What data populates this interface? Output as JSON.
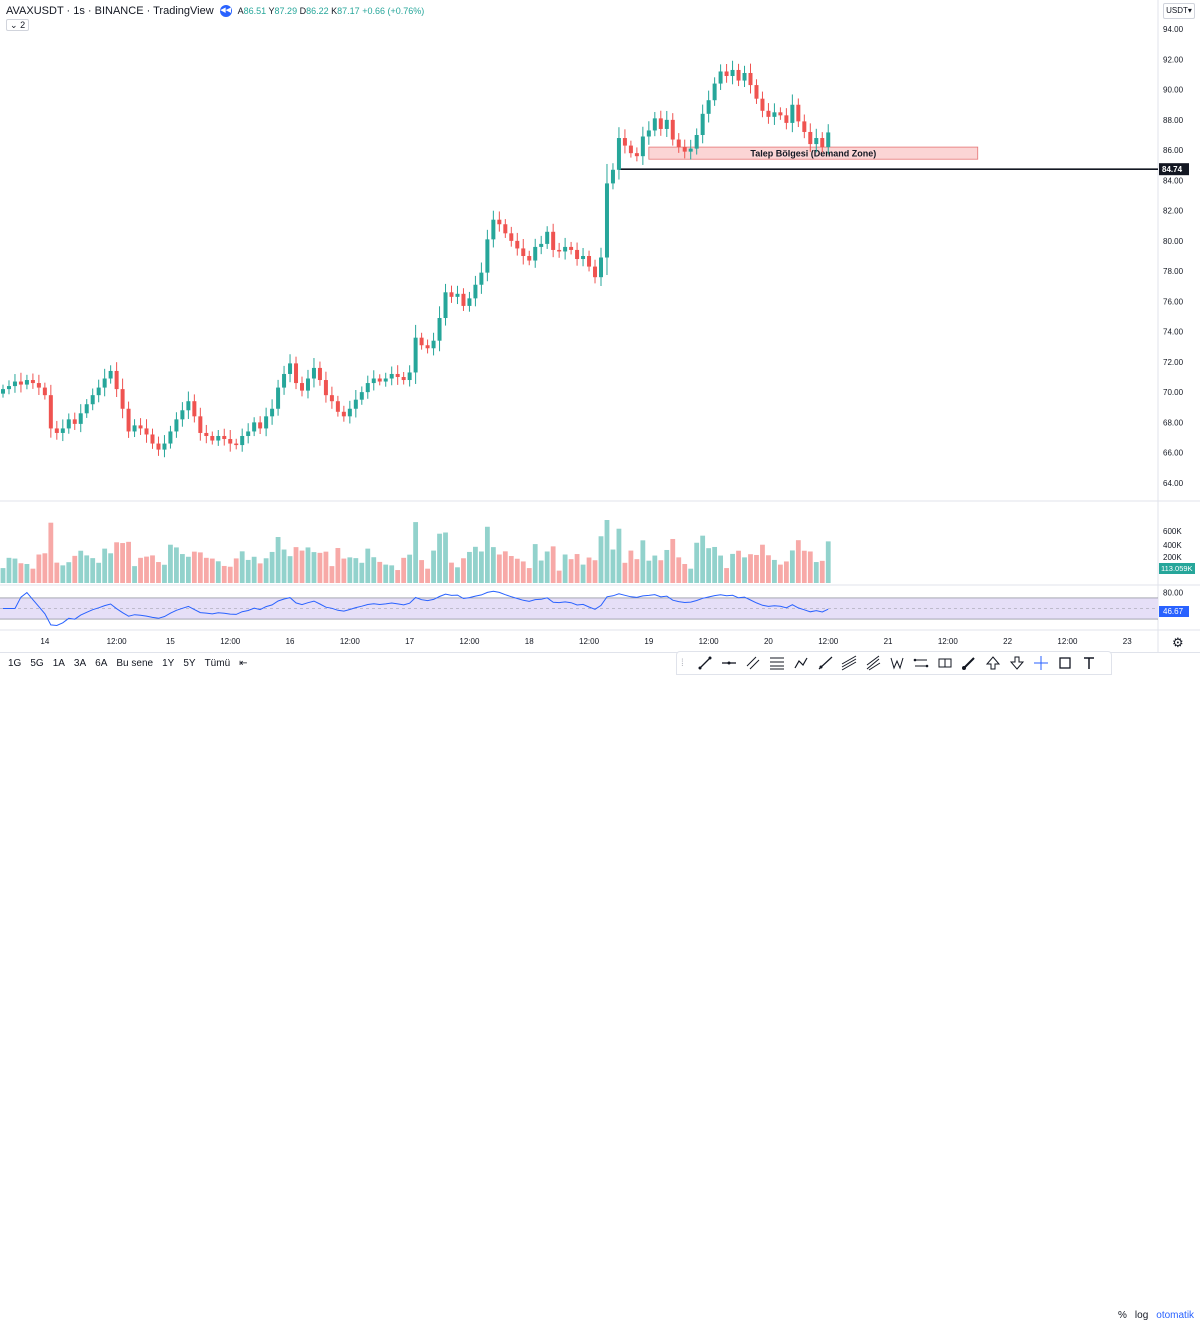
{
  "legend": {
    "symbol": "AVAXUSDT · 1s · BINANCE · TradingView",
    "open": "86.51",
    "high": "87.29",
    "low": "86.22",
    "close": "87.17",
    "change": "+0.66 (+0.76%)",
    "o_label": "A",
    "h_label": "Y",
    "l_label": "D",
    "c_label": "K",
    "indicator_count": "2"
  },
  "currency": "USDT",
  "periods": [
    "1G",
    "5G",
    "1A",
    "3A",
    "6A",
    "Bu sene",
    "1Y",
    "5Y",
    "Tümü"
  ],
  "scale_controls": {
    "percent": "%",
    "log": "log",
    "auto": "otomatik"
  },
  "tools": [
    "trend-line-icon",
    "horizontal-line-icon",
    "parallel-channel-icon",
    "fib-retracement-icon",
    "path-icon",
    "ray-icon",
    "regression-trend-icon",
    "pitchfork-icon",
    "xabcd-pattern-icon",
    "long-position-icon",
    "price-range-icon",
    "brush-icon",
    "arrow-up-icon",
    "arrow-down-icon",
    "crosshair-icon",
    "rectangle-icon",
    "text-icon"
  ],
  "colors": {
    "up": "#26a69a",
    "down": "#ef5350",
    "up_vol": "#92d2cc",
    "down_vol": "#f7a9a7",
    "zone_fill": "#fbd5d5",
    "zone_border": "#e57373",
    "rsi_line": "#2962ff",
    "rsi_band": "#e6dff7"
  },
  "chart_data": {
    "type": "candlestick",
    "price_axis": {
      "min": 63,
      "max": 95,
      "ticks": [
        "64.00",
        "66.00",
        "68.00",
        "70.00",
        "72.00",
        "74.00",
        "76.00",
        "78.00",
        "80.00",
        "82.00",
        "84.00",
        "86.00",
        "88.00",
        "90.00",
        "92.00",
        "94.00"
      ],
      "last_price_label": "84.74"
    },
    "time_axis": {
      "labels": [
        {
          "text": "14",
          "i": 7
        },
        {
          "text": "12:00",
          "i": 19
        },
        {
          "text": "15",
          "i": 28
        },
        {
          "text": "12:00",
          "i": 38
        },
        {
          "text": "16",
          "i": 48
        },
        {
          "text": "12:00",
          "i": 58
        },
        {
          "text": "17",
          "i": 68
        },
        {
          "text": "12:00",
          "i": 78
        },
        {
          "text": "18",
          "i": 88
        },
        {
          "text": "12:00",
          "i": 98
        },
        {
          "text": "19",
          "i": 108
        },
        {
          "text": "12:00",
          "i": 118
        },
        {
          "text": "20",
          "i": 128
        },
        {
          "text": "12:00",
          "i": 138
        },
        {
          "text": "21",
          "i": 148
        },
        {
          "text": "12:00",
          "i": 158
        },
        {
          "text": "22",
          "i": 168
        },
        {
          "text": "12:00",
          "i": 178
        },
        {
          "text": "23",
          "i": 188
        }
      ]
    },
    "closes": [
      70.2,
      70.4,
      70.7,
      70.5,
      70.8,
      70.6,
      70.3,
      69.8,
      67.6,
      67.3,
      67.6,
      68.2,
      67.9,
      68.6,
      69.2,
      69.8,
      70.3,
      70.9,
      71.4,
      70.2,
      68.9,
      67.4,
      67.8,
      67.6,
      67.2,
      66.6,
      66.2,
      66.6,
      67.4,
      68.2,
      68.8,
      69.4,
      68.4,
      67.3,
      67.1,
      66.8,
      67.1,
      66.9,
      66.6,
      66.5,
      67.1,
      67.4,
      68.0,
      67.6,
      68.4,
      68.9,
      70.3,
      71.2,
      71.9,
      70.6,
      70.1,
      70.9,
      71.6,
      70.8,
      69.8,
      69.4,
      68.7,
      68.4,
      68.9,
      69.5,
      70.0,
      70.6,
      70.9,
      70.7,
      70.9,
      71.2,
      71.0,
      70.8,
      71.3,
      73.6,
      73.1,
      72.9,
      73.4,
      74.9,
      76.6,
      76.3,
      76.5,
      75.7,
      76.2,
      77.1,
      77.9,
      80.1,
      81.4,
      81.1,
      80.5,
      80.0,
      79.5,
      79.0,
      78.7,
      79.6,
      79.8,
      80.6,
      79.4,
      79.3,
      79.6,
      79.4,
      78.8,
      79.0,
      78.3,
      77.6,
      78.9,
      83.8,
      84.7,
      86.8,
      86.3,
      85.8,
      85.6,
      86.9,
      87.3,
      88.1,
      87.4,
      88.0,
      86.7,
      86.2,
      85.9,
      86.1,
      87.0,
      88.4,
      89.3,
      90.4,
      91.2,
      90.9,
      91.3,
      90.6,
      91.1,
      90.3,
      89.4,
      88.6,
      88.2,
      88.5,
      88.3,
      87.8,
      89.0,
      87.9,
      87.2,
      86.4,
      86.8,
      86.2,
      87.17
    ],
    "rsi": {
      "upper": 70,
      "lower": 30,
      "mid": 50,
      "axis_tick": "80.00",
      "last_label": "46.67",
      "min": 15,
      "max": 85
    },
    "volume": {
      "axis_ticks": [
        "600K",
        "400K",
        "200K"
      ],
      "last_label": "113.059K",
      "max": 650000
    },
    "demand_zone": {
      "label": "Talep Bölgesi (Demand Zone)",
      "top": 86.2,
      "bottom": 85.4,
      "start_i": 108,
      "end_i": 163
    },
    "support_line": {
      "price": 84.74,
      "start_i": 103
    }
  }
}
